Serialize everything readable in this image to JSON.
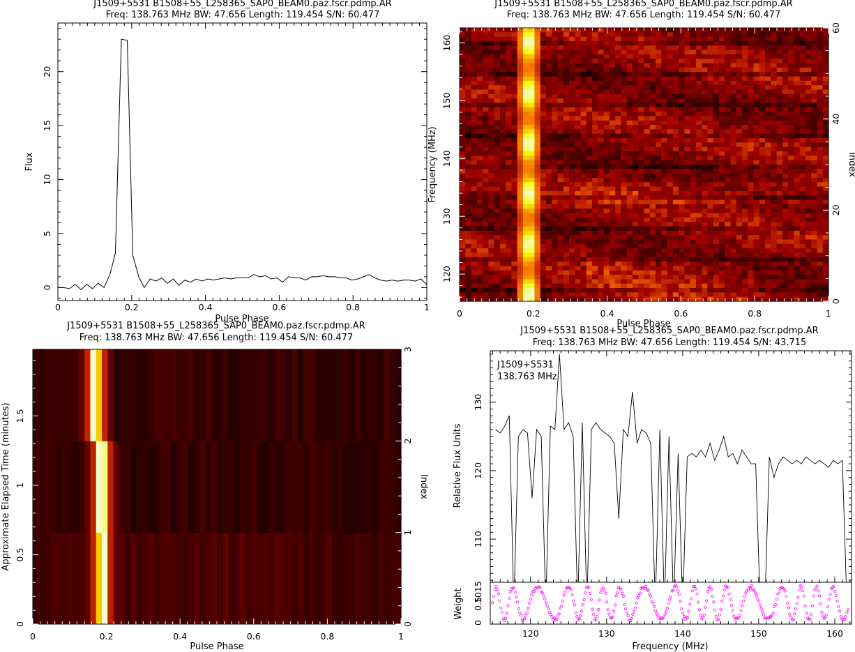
{
  "panels": {
    "profile": {
      "title1": "J1509+5531  B1508+55_L258365_SAP0_BEAM0.paz.fscr.pdmp.AR",
      "title2": "Freq: 138.763 MHz BW: 47.656 Length: 119.454 S/N: 60.477",
      "xlabel": "Pulse Phase",
      "ylabel": "Flux"
    },
    "freqphase": {
      "title1": "J1509+5531  B1508+55_L258365_SAP0_BEAM0.paz.fscr.pdmp.AR",
      "title2": "Freq: 138.763 MHz BW: 47.656 Length: 119.454 S/N: 60.477",
      "xlabel": "Pulse Phase",
      "ylabel": "Frequency (MHz)",
      "y2label": "Index"
    },
    "timephase": {
      "title1": "J1509+5531  B1508+55_L258365_SAP0_BEAM0.paz.fscr.pdmp.AR",
      "title2": "Freq: 138.763 MHz BW: 47.656 Length: 119.454 S/N: 60.477",
      "xlabel": "Pulse Phase",
      "ylabel": "Approximate Elapsed Time (minutes)",
      "y2label": "Index"
    },
    "bandpass": {
      "title1": "J1509+5531  B1508+55_L258365_SAP0_BEAM0.paz.fscr.pdmp.AR",
      "title2": "Freq: 138.763 MHz BW: 47.656 Length: 119.454 S/N: 43.715",
      "xlabel": "Frequency (MHz)",
      "ylabel": "Relative Flux Units",
      "ylabel2": "Weight",
      "annotation1": "J1509+5531",
      "annotation2": "138.763 MHz"
    }
  },
  "chart_data": [
    {
      "type": "line",
      "panel": "profile",
      "x": [
        0.0,
        0.016,
        0.031,
        0.047,
        0.063,
        0.078,
        0.094,
        0.109,
        0.125,
        0.141,
        0.156,
        0.172,
        0.188,
        0.203,
        0.219,
        0.234,
        0.25,
        0.266,
        0.281,
        0.297,
        0.313,
        0.328,
        0.344,
        0.359,
        0.375,
        0.391,
        0.406,
        0.422,
        0.438,
        0.453,
        0.469,
        0.484,
        0.5,
        0.516,
        0.531,
        0.547,
        0.563,
        0.578,
        0.594,
        0.609,
        0.625,
        0.641,
        0.656,
        0.672,
        0.688,
        0.703,
        0.719,
        0.734,
        0.75,
        0.766,
        0.781,
        0.797,
        0.813,
        0.828,
        0.844,
        0.859,
        0.875,
        0.891,
        0.906,
        0.922,
        0.938,
        0.953,
        0.969,
        0.984,
        1.0
      ],
      "y": [
        0.0,
        0.0,
        -0.1,
        0.3,
        -0.2,
        0.3,
        -0.1,
        0.4,
        0.0,
        1.2,
        3.2,
        23.0,
        22.9,
        3.0,
        1.0,
        0.0,
        0.8,
        0.6,
        0.9,
        0.4,
        0.8,
        0.2,
        0.7,
        0.5,
        0.8,
        0.6,
        0.8,
        0.7,
        0.8,
        0.9,
        0.8,
        0.9,
        0.9,
        0.9,
        1.2,
        1.0,
        1.1,
        0.8,
        0.9,
        0.5,
        1.0,
        0.9,
        0.9,
        0.7,
        1.0,
        1.0,
        1.1,
        1.0,
        1.0,
        0.9,
        0.9,
        0.7,
        0.8,
        1.0,
        1.2,
        0.9,
        0.7,
        0.6,
        0.7,
        0.6,
        0.7,
        0.7,
        0.6,
        0.8,
        0.3
      ],
      "xlim": [
        0,
        1
      ],
      "ylim": [
        -1.2,
        24.5
      ],
      "xticks": [
        "0",
        "0.2",
        "0.4",
        "0.6",
        "0.8",
        "1"
      ],
      "yticks": [
        "0",
        "5",
        "10",
        "15",
        "20"
      ],
      "ytick_values": [
        0,
        5,
        10,
        15,
        20
      ]
    },
    {
      "type": "heatmap",
      "panel": "freqphase",
      "xlim": [
        0,
        1
      ],
      "ylim": [
        115.3,
        162.6
      ],
      "index_lim": [
        0,
        60
      ],
      "pulse_phase_center": 0.19,
      "xticks": [
        "0",
        "0.2",
        "0.4",
        "0.6",
        "0.8",
        "1"
      ],
      "yticks": [
        "120",
        "130",
        "140",
        "150",
        "160"
      ],
      "ytick_values": [
        120,
        130,
        140,
        150,
        160
      ],
      "y2ticks": [
        "0",
        "20",
        "40",
        "60"
      ],
      "y2tick_values": [
        0,
        20,
        40,
        60
      ],
      "colormap": "heat",
      "colors": {
        "dark": "#1a0000",
        "mid": "#8b1a00",
        "bright": "#ffcc33",
        "peak": "#ffffd0"
      }
    },
    {
      "type": "heatmap",
      "panel": "timephase",
      "xlim": [
        0,
        1
      ],
      "ylim": [
        0,
        1.98
      ],
      "index_lim": [
        0,
        3
      ],
      "subints": 3,
      "xticks": [
        "0",
        "0.2",
        "0.4",
        "0.6",
        "0.8",
        "1"
      ],
      "yticks": [
        "0",
        "0.5",
        "1",
        "1.5"
      ],
      "ytick_values": [
        0,
        0.5,
        1,
        1.5
      ],
      "y2ticks": [
        "0",
        "1",
        "2",
        "3"
      ],
      "y2tick_values": [
        0,
        1,
        2,
        3
      ]
    },
    {
      "type": "line",
      "panel": "bandpass",
      "x": [
        115.4,
        116.0,
        116.6,
        117.2,
        117.8,
        118.4,
        119.0,
        119.6,
        120.2,
        120.8,
        121.4,
        122.0,
        122.6,
        123.2,
        123.8,
        124.4,
        125.0,
        125.6,
        126.2,
        126.8,
        127.4,
        128.0,
        128.6,
        129.2,
        129.8,
        130.4,
        131.0,
        131.6,
        132.2,
        132.8,
        133.4,
        134.0,
        134.6,
        135.2,
        135.8,
        136.4,
        137.0,
        137.6,
        138.2,
        138.8,
        139.4,
        140.0,
        140.6,
        141.2,
        141.8,
        142.4,
        143.0,
        143.6,
        144.2,
        144.8,
        145.4,
        146.0,
        146.6,
        147.2,
        147.8,
        148.4,
        149.0,
        149.6,
        150.2,
        150.8,
        151.4,
        152.0,
        152.6,
        153.2,
        153.8,
        154.4,
        155.0,
        155.6,
        156.2,
        156.8,
        157.4,
        158.0,
        158.6,
        159.2,
        159.8,
        160.4,
        161.0,
        161.6
      ],
      "y": [
        126.0,
        125.5,
        126.5,
        128.0,
        100.0,
        125.0,
        126.0,
        125.5,
        116.0,
        126.0,
        125.0,
        100.0,
        126.5,
        126.0,
        137.0,
        126.0,
        127.0,
        125.0,
        100.0,
        127.0,
        100.0,
        126.0,
        127.0,
        126.0,
        125.5,
        125.0,
        124.0,
        113.0,
        126.0,
        125.0,
        131.5,
        124.0,
        126.0,
        125.5,
        124.0,
        100.0,
        126.0,
        100.0,
        125.0,
        100.0,
        122.5,
        100.0,
        122.0,
        122.5,
        122.0,
        123.0,
        122.0,
        124.0,
        121.5,
        123.0,
        125.0,
        122.0,
        122.5,
        121.0,
        123.0,
        122.0,
        121.0,
        121.0,
        100.0,
        100.0,
        122.0,
        119.0,
        121.0,
        122.0,
        121.5,
        121.0,
        121.5,
        121.0,
        122.0,
        121.5,
        121.0,
        121.5,
        121.0,
        120.5,
        121.5,
        121.0,
        121.5,
        100.0
      ],
      "xlim": [
        114.7,
        162.2
      ],
      "ylim": [
        103.7,
        137.5
      ],
      "xticks": [
        "120",
        "130",
        "140",
        "150",
        "160"
      ],
      "xtick_values": [
        120,
        130,
        140,
        150,
        160
      ],
      "yticks": [
        "110",
        "120",
        "130"
      ],
      "ytick_values": [
        110,
        120,
        130
      ],
      "line_color": "#000000"
    },
    {
      "type": "scatter",
      "panel": "weights",
      "xlim": [
        114.7,
        162.2
      ],
      "ylim": [
        0,
        1.0
      ],
      "yticks": [
        "0",
        "0.5",
        "1015"
      ],
      "point_color": "#ff00ff"
    }
  ]
}
